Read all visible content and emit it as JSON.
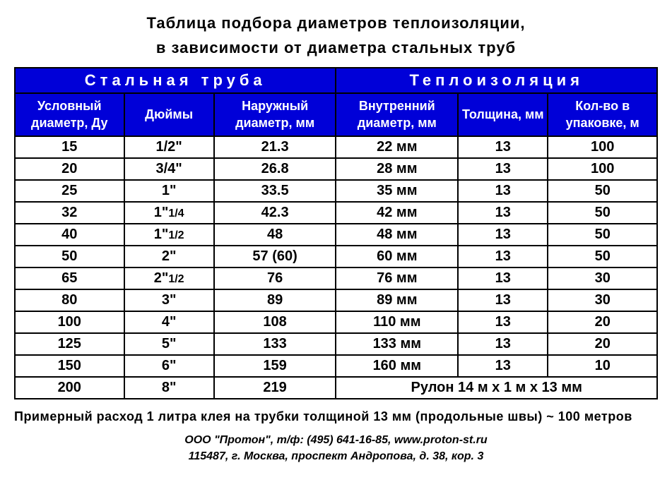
{
  "title_line1": "Таблица  подбора  диаметров  теплоизоляции,",
  "title_line2": "в  зависимости  от  диаметра  стальных труб",
  "header": {
    "group1": "Стальная  труба",
    "group2": "Теплоизоляция",
    "col1": "Условный диаметр,  Ду",
    "col2": "Дюймы",
    "col3": "Наружный диаметр,  мм",
    "col4": "Внутренний диаметр,  мм",
    "col5": "Толщина, мм",
    "col6": "Кол-во  в упаковке,  м"
  },
  "col_widths": [
    "17%",
    "14%",
    "19%",
    "19%",
    "14%",
    "17%"
  ],
  "rows": [
    {
      "du": "15",
      "inch": "1/2\"",
      "od": "21.3",
      "id": "22 мм",
      "th": "13",
      "pkg": "100"
    },
    {
      "du": "20",
      "inch": "3/4\"",
      "od": "26.8",
      "id": "28 мм",
      "th": "13",
      "pkg": "100"
    },
    {
      "du": "25",
      "inch": "1\"",
      "od": "33.5",
      "id": "35 мм",
      "th": "13",
      "pkg": "50"
    },
    {
      "du": "32",
      "inch_main": "1\"",
      "inch_frac": "1/4",
      "od": "42.3",
      "id": "42 мм",
      "th": "13",
      "pkg": "50"
    },
    {
      "du": "40",
      "inch_main": "1\"",
      "inch_frac": "1/2",
      "od": "48",
      "id": "48 мм",
      "th": "13",
      "pkg": "50"
    },
    {
      "du": "50",
      "inch": "2\"",
      "od": "57 (60)",
      "id": "60 мм",
      "th": "13",
      "pkg": "50"
    },
    {
      "du": "65",
      "inch_main": "2\"",
      "inch_frac": "1/2",
      "od": "76",
      "id": "76 мм",
      "th": "13",
      "pkg": "30"
    },
    {
      "du": "80",
      "inch": "3\"",
      "od": "89",
      "id": "89 мм",
      "th": "13",
      "pkg": "30"
    },
    {
      "du": "100",
      "inch": "4\"",
      "od": "108",
      "id": "110 мм",
      "th": "13",
      "pkg": "20"
    },
    {
      "du": "125",
      "inch": "5\"",
      "od": "133",
      "id": "133 мм",
      "th": "13",
      "pkg": "20"
    },
    {
      "du": "150",
      "inch": "6\"",
      "od": "159",
      "id": "160 мм",
      "th": "13",
      "pkg": "10"
    }
  ],
  "last_row": {
    "du": "200",
    "inch": "8\"",
    "od": "219",
    "merged": "Рулон  14 м х 1 м х 13 мм"
  },
  "footnote": "Примерный расход 1 литра клея на трубки толщиной 13 мм (продольные швы) ~ 100 метров",
  "contact_line1": "ООО \"Протон\",  т/ф: (495) 641-16-85,  www.proton-st.ru",
  "contact_line2": "115487,  г. Москва,  проспект  Андропова,  д. 38,  кор. 3",
  "colors": {
    "header_bg": "#0000d8",
    "header_fg": "#ffffff",
    "border": "#000000",
    "text": "#000000"
  }
}
